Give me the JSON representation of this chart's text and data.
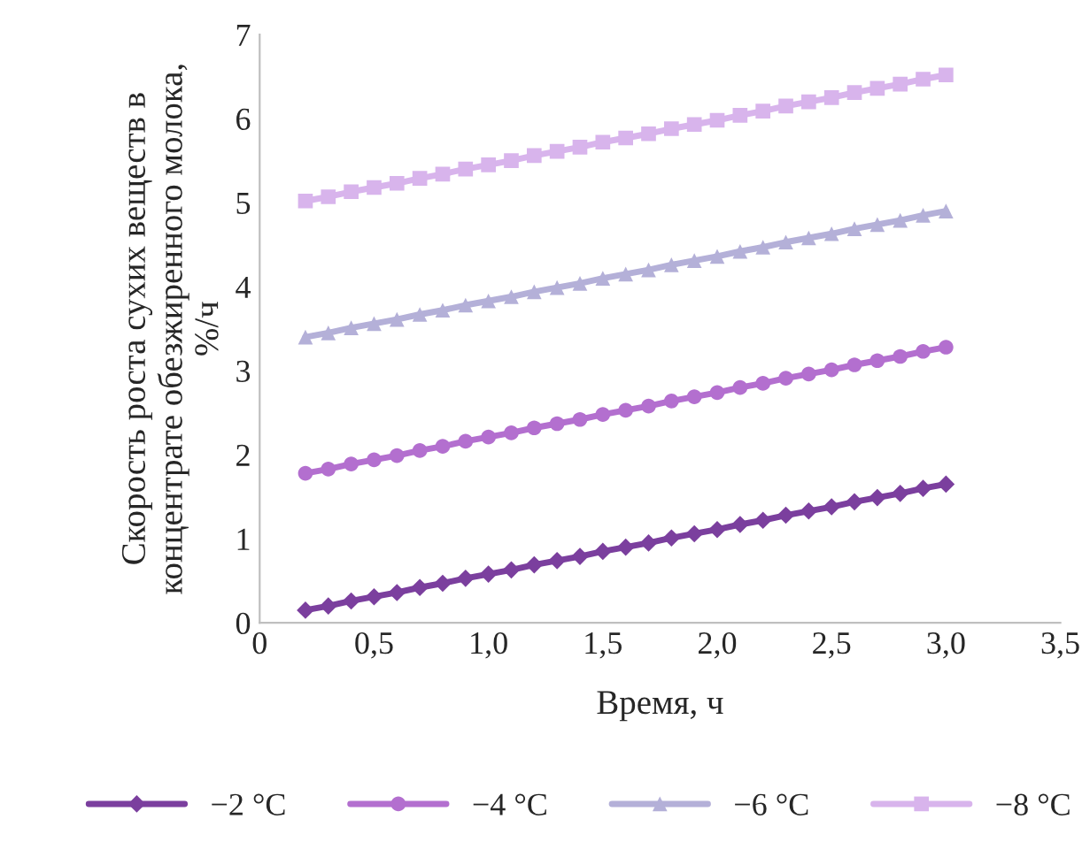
{
  "chart_data": {
    "type": "line",
    "xlabel": "Время, ч",
    "ylabel": "Скорость роста сухих веществ в\nконцентрате обезжиренного молока,\n%/ч",
    "x": [
      0.2,
      0.3,
      0.4,
      0.5,
      0.6,
      0.7,
      0.8,
      0.9,
      1.0,
      1.1,
      1.2,
      1.3,
      1.4,
      1.5,
      1.6,
      1.7,
      1.8,
      1.9,
      2.0,
      2.1,
      2.2,
      2.3,
      2.4,
      2.5,
      2.6,
      2.7,
      2.8,
      2.9,
      3.0
    ],
    "series": [
      {
        "name": "−2 °C",
        "color": "#7b3f9e",
        "marker": "diamond",
        "values": [
          0.15,
          0.2,
          0.26,
          0.31,
          0.36,
          0.42,
          0.47,
          0.53,
          0.58,
          0.63,
          0.69,
          0.74,
          0.79,
          0.85,
          0.9,
          0.95,
          1.01,
          1.06,
          1.11,
          1.17,
          1.22,
          1.28,
          1.33,
          1.38,
          1.44,
          1.49,
          1.54,
          1.6,
          1.65
        ]
      },
      {
        "name": "−4 °C",
        "color": "#b36fcf",
        "marker": "circle",
        "values": [
          1.78,
          1.83,
          1.89,
          1.94,
          1.99,
          2.05,
          2.1,
          2.16,
          2.21,
          2.26,
          2.32,
          2.37,
          2.42,
          2.48,
          2.53,
          2.58,
          2.64,
          2.69,
          2.74,
          2.8,
          2.85,
          2.91,
          2.96,
          3.01,
          3.07,
          3.12,
          3.17,
          3.23,
          3.28
        ]
      },
      {
        "name": "−6 °C",
        "color": "#b4b0d8",
        "marker": "triangle",
        "values": [
          3.4,
          3.45,
          3.51,
          3.56,
          3.61,
          3.67,
          3.72,
          3.78,
          3.83,
          3.88,
          3.94,
          3.99,
          4.04,
          4.1,
          4.15,
          4.2,
          4.26,
          4.31,
          4.36,
          4.42,
          4.47,
          4.53,
          4.58,
          4.63,
          4.69,
          4.74,
          4.79,
          4.85,
          4.9
        ]
      },
      {
        "name": "−8 °C",
        "color": "#d8b4ec",
        "marker": "square",
        "values": [
          5.02,
          5.07,
          5.13,
          5.18,
          5.23,
          5.29,
          5.34,
          5.4,
          5.45,
          5.5,
          5.56,
          5.61,
          5.66,
          5.72,
          5.77,
          5.82,
          5.88,
          5.93,
          5.98,
          6.04,
          6.09,
          6.15,
          6.2,
          6.25,
          6.31,
          6.36,
          6.41,
          6.47,
          6.52
        ]
      }
    ],
    "xlim": [
      0,
      3.5
    ],
    "xticks": [
      0,
      {
        "value": 0.5,
        "label": "0,5"
      },
      {
        "value": 1.0,
        "label": "1,0"
      },
      {
        "value": 1.5,
        "label": "1,5"
      },
      {
        "value": 2.0,
        "label": "2,0"
      },
      {
        "value": 2.5,
        "label": "2,5"
      },
      {
        "value": 3.0,
        "label": "3,0"
      },
      {
        "value": 3.5,
        "label": "3,5"
      }
    ],
    "ylim": [
      0,
      7
    ],
    "yticks": [
      0,
      1,
      2,
      3,
      4,
      5,
      6,
      7
    ],
    "grid": false,
    "legend": "bottom",
    "line_style": "solid"
  }
}
